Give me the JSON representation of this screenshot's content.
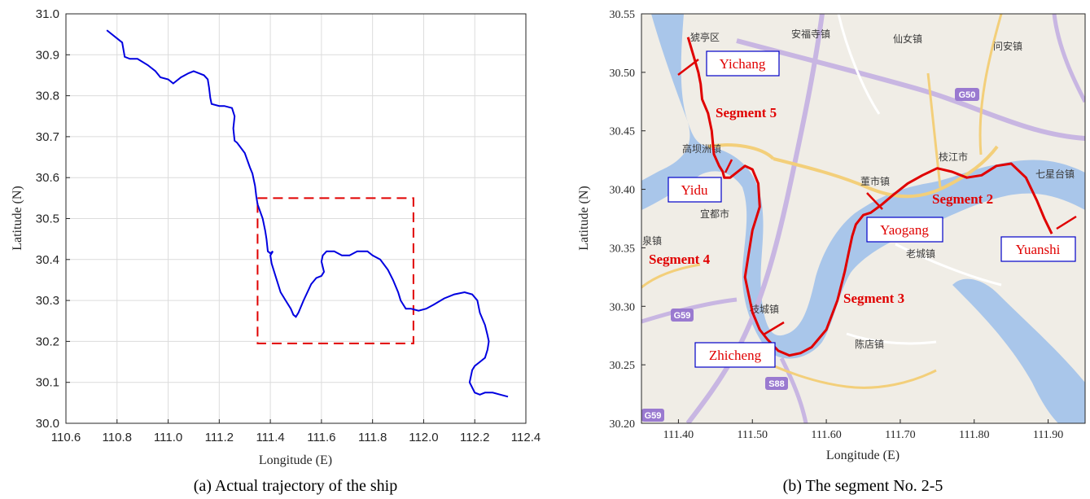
{
  "chart_data": [
    {
      "type": "line",
      "caption": "(a) Actual trajectory of the ship",
      "xlabel": "Longitude (E)",
      "ylabel": "Latitude (N)",
      "xlim": [
        110.6,
        112.4
      ],
      "ylim": [
        30.0,
        31.0
      ],
      "xticks": [
        "110.6",
        "110.8",
        "111.0",
        "111.2",
        "111.4",
        "111.6",
        "111.8",
        "112.0",
        "112.2",
        "112.4"
      ],
      "yticks": [
        "30.0",
        "30.1",
        "30.2",
        "30.3",
        "30.4",
        "30.5",
        "30.6",
        "30.7",
        "30.8",
        "30.9",
        "31.0"
      ],
      "grid": true,
      "line_color": "#0000e0",
      "box_color": "#e00000",
      "series": [
        {
          "x": [
            110.76,
            110.8,
            110.82,
            110.83,
            110.85,
            110.88,
            110.92,
            110.95,
            110.97,
            111.0,
            111.02,
            111.05,
            111.08,
            111.1,
            111.12,
            111.14,
            111.155,
            111.16,
            111.165,
            111.17,
            111.2,
            111.22,
            111.25,
            111.26,
            111.255,
            111.26,
            111.27,
            111.3,
            111.32,
            111.33,
            111.34,
            111.345,
            111.35,
            111.37,
            111.38,
            111.385,
            111.39,
            111.4,
            111.41,
            111.4,
            111.405,
            111.42,
            111.44,
            111.46,
            111.48,
            111.49,
            111.5,
            111.5,
            111.51,
            111.53,
            111.56,
            111.58,
            111.6,
            111.61,
            111.6,
            111.605,
            111.62,
            111.65,
            111.68,
            111.71,
            111.74,
            111.76,
            111.78,
            111.8,
            111.83,
            111.86,
            111.88,
            111.9,
            111.91,
            111.92,
            111.93,
            111.95,
            111.98,
            112.01,
            112.04,
            112.08,
            112.12,
            112.16,
            112.19,
            112.21,
            112.22,
            112.24,
            112.25,
            112.255,
            112.25,
            112.24,
            112.22,
            112.2,
            112.19,
            112.18,
            112.2,
            112.22,
            112.24,
            112.27,
            112.3,
            112.33
          ],
          "y": [
            30.96,
            30.94,
            30.93,
            30.895,
            30.89,
            30.89,
            30.875,
            30.86,
            30.845,
            30.84,
            30.83,
            30.845,
            30.855,
            30.86,
            30.855,
            30.85,
            30.84,
            30.82,
            30.795,
            30.78,
            30.775,
            30.775,
            30.77,
            30.75,
            30.72,
            30.69,
            30.685,
            30.66,
            30.625,
            30.61,
            30.58,
            30.555,
            30.535,
            30.5,
            30.47,
            30.45,
            30.42,
            30.415,
            30.42,
            30.41,
            30.39,
            30.36,
            30.32,
            30.3,
            30.28,
            30.265,
            30.26,
            30.26,
            30.27,
            30.3,
            30.34,
            30.355,
            30.36,
            30.37,
            30.395,
            30.41,
            30.42,
            30.42,
            30.41,
            30.41,
            30.42,
            30.42,
            30.42,
            30.41,
            30.4,
            30.375,
            30.35,
            30.32,
            30.3,
            30.29,
            30.28,
            30.28,
            30.275,
            30.28,
            30.29,
            30.305,
            30.315,
            30.32,
            30.315,
            30.3,
            30.27,
            30.24,
            30.215,
            30.2,
            30.18,
            30.16,
            30.15,
            30.14,
            30.13,
            30.1,
            30.075,
            30.07,
            30.075,
            30.075,
            30.07,
            30.065
          ],
          "box": [
            111.35,
            111.96,
            30.195,
            30.55
          ]
        }
      ]
    },
    {
      "type": "line",
      "caption": "(b) The segment No. 2-5",
      "xlabel": "Longitude (E)",
      "ylabel": "Latitude (N)",
      "xlim": [
        111.35,
        111.95
      ],
      "ylim": [
        30.2,
        30.55
      ],
      "xticks": [
        "111.40",
        "111.50",
        "111.60",
        "111.70",
        "111.80",
        "111.90"
      ],
      "yticks": [
        "30.20",
        "30.25",
        "30.30",
        "30.35",
        "30.40",
        "30.45",
        "30.50",
        "30.55"
      ],
      "line_color": "#e00000",
      "series": [
        {
          "x": [
            111.413,
            111.42,
            111.427,
            111.43,
            111.432,
            111.44,
            111.445,
            111.448,
            111.455,
            111.46,
            111.462,
            111.47,
            111.48,
            111.49,
            111.5,
            111.508,
            111.51,
            111.5,
            111.495,
            111.49,
            111.495,
            111.5,
            111.51,
            111.52,
            111.535,
            111.55,
            111.565,
            111.58,
            111.6,
            111.615,
            111.625,
            111.63,
            111.635,
            111.64,
            111.65,
            111.66,
            111.675,
            111.69,
            111.71,
            111.73,
            111.75,
            111.77,
            111.79,
            111.81,
            111.83,
            111.85,
            111.87,
            111.885,
            111.895,
            111.905
          ],
          "y": [
            30.53,
            30.515,
            30.5,
            30.49,
            30.477,
            30.465,
            30.45,
            30.43,
            30.42,
            30.415,
            30.41,
            30.41,
            30.415,
            30.42,
            30.417,
            30.405,
            30.385,
            30.365,
            30.345,
            30.325,
            30.31,
            30.295,
            30.28,
            30.272,
            30.262,
            30.258,
            30.26,
            30.265,
            30.28,
            30.305,
            30.33,
            30.345,
            30.36,
            30.37,
            30.378,
            30.38,
            30.387,
            30.395,
            30.405,
            30.412,
            30.418,
            30.415,
            30.41,
            30.412,
            30.42,
            30.422,
            30.41,
            30.39,
            30.375,
            30.362
          ]
        }
      ],
      "segment_labels": [
        "Segment 2",
        "Segment 3",
        "Segment 4",
        "Segment 5"
      ],
      "location_labels": [
        "Yichang",
        "Yidu",
        "Yaogang",
        "Zhicheng",
        "Yuanshi"
      ],
      "map_labels": [
        "猇亭区",
        "安福寺镇",
        "仙女镇",
        "问安镇",
        "高坝洲镇",
        "宜都市",
        "董市镇",
        "枝江市",
        "七星台镇",
        "老城镇",
        "枝城镇",
        "陈店镇",
        "泉镇"
      ],
      "road_labels": [
        "G50",
        "G59",
        "G59",
        "S88"
      ],
      "map_colors": {
        "land": "#f0ede6",
        "river": "#a9c6ea",
        "expressway": "#c8b6e2",
        "highway": "#f3cf7a",
        "shield": "#9a7ad0"
      }
    }
  ]
}
